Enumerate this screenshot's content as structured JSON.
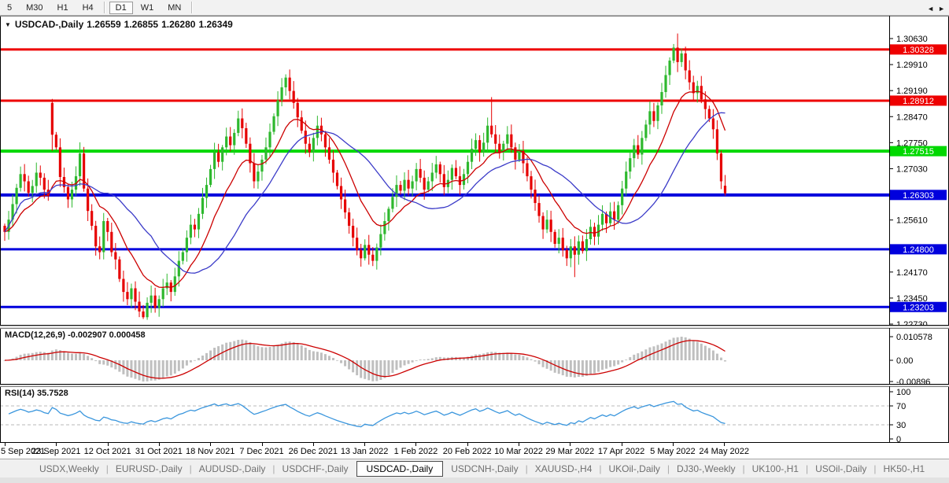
{
  "toolbar": {
    "timeframes": [
      "5",
      "M30",
      "H1",
      "H4",
      "D1",
      "W1",
      "MN"
    ],
    "active_timeframe": "D1"
  },
  "chart": {
    "title": {
      "symbol": "USDCAD-,Daily",
      "open": "1.26559",
      "high": "1.26855",
      "low": "1.26280",
      "close": "1.26349"
    },
    "dropdown_icon": "▼"
  },
  "chart_data": [
    {
      "type": "candlestick",
      "title": "USDCAD-,Daily",
      "x_labels": [
        "5 Sep 2021",
        "23 Sep 2021",
        "12 Oct 2021",
        "31 Oct 2021",
        "18 Nov 2021",
        "7 Dec 2021",
        "26 Dec 2021",
        "13 Jan 2022",
        "1 Feb 2022",
        "20 Feb 2022",
        "10 Mar 2022",
        "29 Mar 2022",
        "17 Apr 2022",
        "5 May 2022",
        "24 May 2022"
      ],
      "y_axis_ticks": [
        "1.30630",
        "1.29910",
        "1.29190",
        "1.28470",
        "1.27750",
        "1.27030",
        "1.25610",
        "1.24170",
        "1.23450",
        "1.22730"
      ],
      "view": {
        "price_top": 1.31218,
        "price_bottom": 1.22708
      },
      "levels": [
        {
          "label": "1.30328",
          "price": 1.30328,
          "color": "#ee0000",
          "width": 3
        },
        {
          "label": "1.28912",
          "price": 1.28912,
          "color": "#ee0000",
          "width": 3
        },
        {
          "label": "1.27515",
          "price": 1.27515,
          "color": "#00d800",
          "width": 4
        },
        {
          "label": "1.26303",
          "price": 1.26303,
          "color": "#0000dd",
          "width": 4
        },
        {
          "label": "1.24800",
          "price": 1.248,
          "color": "#0000dd",
          "width": 3
        },
        {
          "label": "1.23203",
          "price": 1.23203,
          "color": "#0000dd",
          "width": 3
        }
      ],
      "up_color": "#2eb82e",
      "down_color": "#e60000",
      "moving_averages": [
        {
          "type": "ema",
          "period": 13,
          "color": "#cc0000"
        },
        {
          "type": "sma",
          "period": 26,
          "color": "#3b3bc8"
        }
      ],
      "first_open": 1.2545,
      "closes": [
        1.2528,
        1.2562,
        1.2605,
        1.265,
        1.2688,
        1.2668,
        1.2636,
        1.2655,
        1.2692,
        1.2678,
        1.2645,
        1.2628,
        1.2797,
        1.2762,
        1.268,
        1.2652,
        1.2618,
        1.2645,
        1.2682,
        1.2745,
        1.2648,
        1.2586,
        1.2545,
        1.2488,
        1.2472,
        1.2558,
        1.2528,
        1.2472,
        1.2452,
        1.2398,
        1.2362,
        1.2342,
        1.2372,
        1.2335,
        1.2308,
        1.2292,
        1.2332,
        1.2352,
        1.2318,
        1.2342,
        1.2372,
        1.2388,
        1.2362,
        1.2405,
        1.2448,
        1.2472,
        1.2512,
        1.2548,
        1.2535,
        1.2578,
        1.2622,
        1.2658,
        1.2702,
        1.2748,
        1.2722,
        1.2762,
        1.2792,
        1.2768,
        1.2802,
        1.2842,
        1.2815,
        1.2772,
        1.2718,
        1.2668,
        1.2695,
        1.2728,
        1.2762,
        1.2805,
        1.2848,
        1.2892,
        1.2928,
        1.2955,
        1.2918,
        1.2885,
        1.2845,
        1.2808,
        1.2772,
        1.2748,
        1.2788,
        1.2822,
        1.2798,
        1.2762,
        1.2728,
        1.2692,
        1.2655,
        1.2618,
        1.2582,
        1.2545,
        1.2512,
        1.2478,
        1.2455,
        1.2492,
        1.2465,
        1.2448,
        1.2485,
        1.2522,
        1.2558,
        1.2592,
        1.2625,
        1.2658,
        1.2642,
        1.2672,
        1.2648,
        1.2668,
        1.2702,
        1.2678,
        1.2645,
        1.2668,
        1.2692,
        1.2715,
        1.2688,
        1.2652,
        1.2672,
        1.2705,
        1.2682,
        1.2658,
        1.2688,
        1.2722,
        1.2758,
        1.2782,
        1.2748,
        1.2775,
        1.2822,
        1.2798,
        1.2772,
        1.2748,
        1.2772,
        1.2798,
        1.2762,
        1.2728,
        1.2752,
        1.2718,
        1.2682,
        1.2645,
        1.2608,
        1.2572,
        1.2535,
        1.2562,
        1.2528,
        1.2495,
        1.2512,
        1.2478,
        1.2455,
        1.2488,
        1.2465,
        1.2502,
        1.2475,
        1.2508,
        1.2542,
        1.2515,
        1.2548,
        1.2578,
        1.2552,
        1.2585,
        1.2562,
        1.2602,
        1.2648,
        1.2695,
        1.2732,
        1.2768,
        1.2742,
        1.2788,
        1.2825,
        1.2862,
        1.2835,
        1.2878,
        1.2915,
        1.2962,
        1.3002,
        1.3038,
        1.2998,
        1.3022,
        1.2975,
        1.2942,
        1.2912,
        1.2932,
        1.2895,
        1.2868,
        1.2842,
        1.2812,
        1.2745,
        1.2668,
        1.26349
      ],
      "overrides": {
        "12": {
          "o": 1.2885,
          "h": 1.2896,
          "l": 1.2752
        },
        "19": {
          "h": 1.2776
        },
        "35": {
          "l": 1.2287
        },
        "71": {
          "h": 1.2964
        },
        "90": {
          "l": 1.2432
        },
        "123": {
          "h": 1.2901
        },
        "144": {
          "l": 1.2403
        },
        "169": {
          "h": 1.3048
        },
        "170": {
          "h": 1.3077
        },
        "182": {
          "o": 1.26559,
          "h": 1.26855,
          "l": 1.2628
        }
      }
    },
    {
      "type": "macd",
      "label": "MACD(12,26,9) -0.002907 0.000458",
      "fast": 12,
      "slow": 26,
      "signal": 9,
      "y_axis_ticks": [
        "0.010578",
        "0.00",
        "-0.00896"
      ],
      "histogram_color": "#bfbfbf",
      "signal_color": "#cc0000"
    },
    {
      "type": "rsi",
      "label": "RSI(14) 35.7528",
      "period": 14,
      "levels": [
        70,
        30
      ],
      "y_axis_ticks": [
        "100",
        "70",
        "30",
        "0"
      ],
      "line_color": "#3a96dd"
    }
  ],
  "tabs": {
    "items": [
      "USDX,Weekly",
      "EURUSD-,Daily",
      "AUDUSD-,Daily",
      "USDCHF-,Daily",
      "USDCAD-,Daily",
      "USDCNH-,Daily",
      "XAUUSD-,H4",
      "UKOil-,Daily",
      "DJ30-,Weekly",
      "UK100-,H1",
      "USOil-,Daily",
      "HK50-,H1"
    ],
    "active": "USDCAD-,Daily",
    "scroll_left_icon": "◄",
    "scroll_right_icon": "►"
  }
}
